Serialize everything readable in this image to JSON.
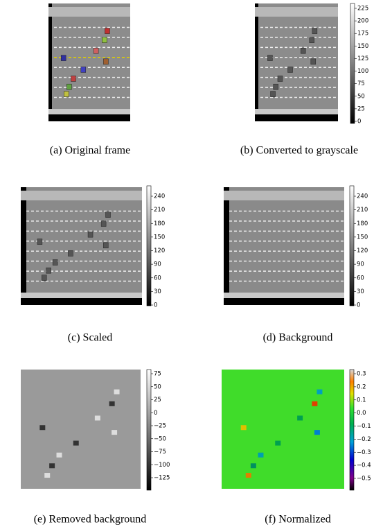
{
  "panels": [
    {
      "caption": "(a) Original frame"
    },
    {
      "caption": "(b) Converted to grayscale",
      "colorbar_ticks": [
        "0",
        "25",
        "50",
        "75",
        "100",
        "125",
        "150",
        "175",
        "200",
        "225"
      ]
    },
    {
      "caption": "(c) Scaled",
      "colorbar_ticks": [
        "0",
        "30",
        "60",
        "90",
        "120",
        "150",
        "180",
        "210",
        "240"
      ]
    },
    {
      "caption": "(d) Background",
      "colorbar_ticks": [
        "0",
        "30",
        "60",
        "90",
        "120",
        "150",
        "180",
        "210",
        "240"
      ]
    },
    {
      "caption": "(e) Removed background",
      "colorbar_ticks": [
        "−125",
        "−100",
        "−75",
        "−50",
        "−25",
        "0",
        "25",
        "50",
        "75"
      ]
    },
    {
      "caption": "(f) Normalized",
      "colorbar_ticks": [
        "−0.5",
        "−0.4",
        "−0.3",
        "−0.2",
        "−0.1",
        "0.0",
        "0.1",
        "0.2",
        "0.3"
      ]
    }
  ]
}
